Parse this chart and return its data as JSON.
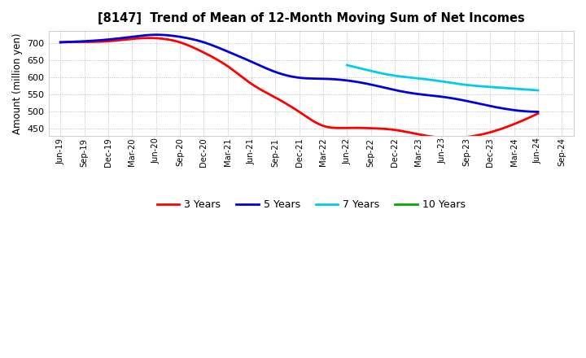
{
  "title": "[8147]  Trend of Mean of 12-Month Moving Sum of Net Incomes",
  "ylabel": "Amount (million yen)",
  "background_color": "#ffffff",
  "grid_color": "#999999",
  "ylim": [
    428,
    735
  ],
  "yticks": [
    450,
    500,
    550,
    600,
    650,
    700
  ],
  "x_labels": [
    "Jun-19",
    "Sep-19",
    "Dec-19",
    "Mar-20",
    "Jun-20",
    "Sep-20",
    "Dec-20",
    "Mar-21",
    "Jun-21",
    "Sep-21",
    "Dec-21",
    "Mar-22",
    "Jun-22",
    "Sep-22",
    "Dec-22",
    "Mar-23",
    "Jun-23",
    "Sep-23",
    "Dec-23",
    "Mar-24",
    "Jun-24",
    "Sep-24"
  ],
  "series": {
    "3 Years": {
      "color": "#ff0000",
      "linewidth": 2.0,
      "values": [
        702,
        703,
        705,
        712,
        714,
        702,
        672,
        632,
        580,
        540,
        498,
        457,
        451,
        450,
        445,
        432,
        422,
        424,
        438,
        462,
        493,
        null
      ]
    },
    "5 Years": {
      "color": "#0000dd",
      "linewidth": 2.0,
      "values": [
        702,
        705,
        710,
        718,
        724,
        718,
        702,
        675,
        645,
        615,
        598,
        595,
        590,
        578,
        562,
        550,
        542,
        530,
        515,
        503,
        498,
        null
      ]
    },
    "7 Years": {
      "color": "#00ccee",
      "linewidth": 2.0,
      "values": [
        null,
        null,
        null,
        null,
        null,
        null,
        null,
        null,
        null,
        null,
        null,
        null,
        635,
        618,
        604,
        596,
        587,
        577,
        571,
        566,
        561,
        null
      ]
    },
    "10 Years": {
      "color": "#00aa00",
      "linewidth": 2.0,
      "values": [
        null,
        null,
        null,
        null,
        null,
        null,
        null,
        null,
        null,
        null,
        null,
        null,
        null,
        null,
        null,
        null,
        null,
        null,
        null,
        null,
        null,
        null
      ]
    }
  }
}
